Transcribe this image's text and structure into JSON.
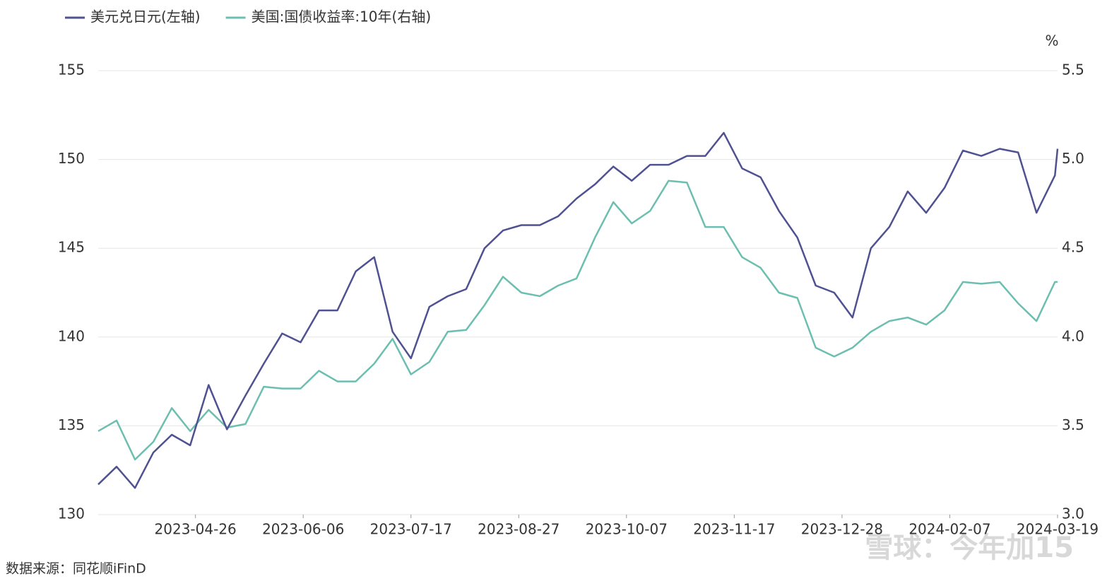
{
  "chart_data": {
    "type": "line",
    "unit_label": "%",
    "source": "数据来源：同花顺iFinD",
    "watermark": "雪球：今年加15",
    "x": [
      "2023-03-20",
      "2023-03-27",
      "2023-04-03",
      "2023-04-10",
      "2023-04-17",
      "2023-04-24",
      "2023-05-01",
      "2023-05-08",
      "2023-05-15",
      "2023-05-22",
      "2023-05-29",
      "2023-06-05",
      "2023-06-12",
      "2023-06-19",
      "2023-06-26",
      "2023-07-03",
      "2023-07-10",
      "2023-07-17",
      "2023-07-24",
      "2023-07-31",
      "2023-08-07",
      "2023-08-14",
      "2023-08-21",
      "2023-08-28",
      "2023-09-04",
      "2023-09-11",
      "2023-09-18",
      "2023-09-25",
      "2023-10-02",
      "2023-10-09",
      "2023-10-16",
      "2023-10-23",
      "2023-10-30",
      "2023-11-06",
      "2023-11-13",
      "2023-11-20",
      "2023-11-27",
      "2023-12-04",
      "2023-12-11",
      "2023-12-18",
      "2023-12-25",
      "2024-01-01",
      "2024-01-08",
      "2024-01-15",
      "2024-01-22",
      "2024-01-29",
      "2024-02-05",
      "2024-02-12",
      "2024-02-19",
      "2024-02-26",
      "2024-03-04",
      "2024-03-11",
      "2024-03-18",
      "2024-03-19"
    ],
    "series": [
      {
        "name": "美元兑日元(左轴)",
        "color": "#4f5190",
        "axis": "y",
        "values": [
          131.7,
          132.7,
          131.5,
          133.5,
          134.5,
          133.9,
          137.3,
          134.8,
          136.7,
          138.5,
          140.2,
          139.7,
          141.5,
          141.5,
          143.7,
          144.5,
          140.3,
          138.8,
          141.7,
          142.3,
          142.7,
          145.0,
          146.0,
          146.3,
          146.3,
          146.8,
          147.8,
          148.6,
          149.6,
          148.8,
          149.7,
          149.7,
          150.2,
          150.2,
          151.5,
          149.5,
          149.0,
          147.1,
          145.6,
          142.9,
          142.5,
          141.1,
          145.0,
          146.2,
          148.2,
          147.0,
          148.4,
          150.5,
          150.2,
          150.6,
          150.4,
          147.0,
          149.1,
          150.6
        ]
      },
      {
        "name": "美国:国债收益率:10年(右轴)",
        "color": "#6cbfb0",
        "axis": "y2",
        "values": [
          3.47,
          3.53,
          3.31,
          3.41,
          3.6,
          3.47,
          3.59,
          3.49,
          3.51,
          3.72,
          3.71,
          3.71,
          3.81,
          3.75,
          3.75,
          3.85,
          3.99,
          3.79,
          3.86,
          4.03,
          4.04,
          4.18,
          4.34,
          4.25,
          4.23,
          4.29,
          4.33,
          4.56,
          4.76,
          4.64,
          4.71,
          4.88,
          4.87,
          4.62,
          4.62,
          4.45,
          4.39,
          4.25,
          4.22,
          3.94,
          3.89,
          3.94,
          4.03,
          4.09,
          4.11,
          4.07,
          4.15,
          4.31,
          4.3,
          4.31,
          4.19,
          4.09,
          4.31,
          4.31
        ]
      }
    ],
    "xlim": [
      "2023-03-20",
      "2024-03-19"
    ],
    "xticks": [
      "2023-04-26",
      "2023-06-06",
      "2023-07-17",
      "2023-08-27",
      "2023-10-07",
      "2023-11-17",
      "2023-12-28",
      "2024-02-07",
      "2024-03-19"
    ],
    "ylim": [
      130,
      155
    ],
    "yticks": [
      130,
      135,
      140,
      145,
      150,
      155
    ],
    "y2lim": [
      3.0,
      5.5
    ],
    "y2ticks": [
      {
        "value": 3,
        "label": "3.0"
      },
      3.5,
      {
        "value": 4,
        "label": "4.0"
      },
      4.5,
      {
        "value": 5,
        "label": "5.0"
      },
      5.5
    ],
    "grid": true
  }
}
